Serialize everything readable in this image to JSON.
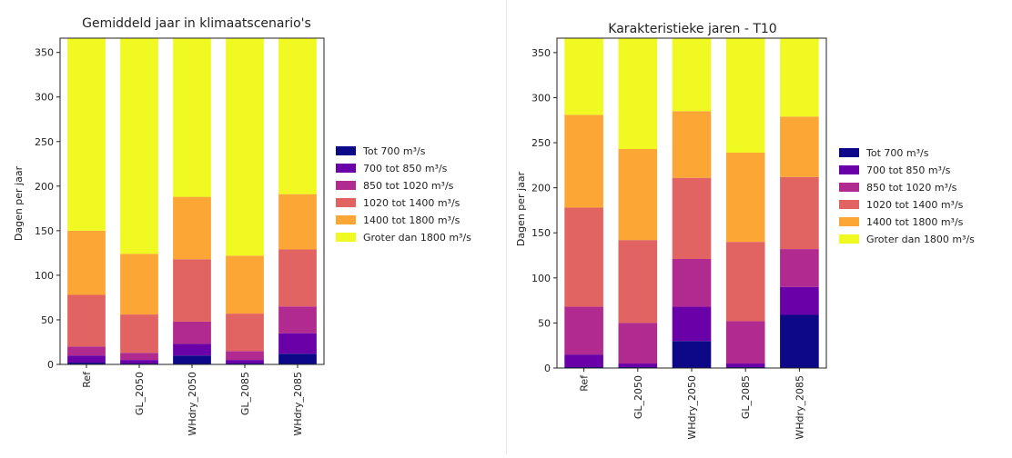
{
  "chart_data": [
    {
      "type": "bar",
      "stacked": true,
      "title": "Gemiddeld jaar in klimaatscenario's",
      "xlabel": "",
      "ylabel": "Dagen per jaar",
      "ylim": [
        0,
        366
      ],
      "yticks": [
        0,
        50,
        100,
        150,
        200,
        250,
        300,
        350
      ],
      "grid": false,
      "legend": "right",
      "categories": [
        "Ref",
        "GL_2050",
        "WHdry_2050",
        "GL_2085",
        "WHdry_2085"
      ],
      "series": [
        {
          "name": "Tot 700 m³/s",
          "color": "#0d0887",
          "values": [
            2,
            1,
            10,
            1,
            12
          ]
        },
        {
          "name": "700 tot 850 m³/s",
          "color": "#6a00a8",
          "values": [
            8,
            4,
            13,
            4,
            23
          ]
        },
        {
          "name": "850 tot 1020 m³/s",
          "color": "#b12a90",
          "values": [
            10,
            8,
            25,
            10,
            30
          ]
        },
        {
          "name": "1020 tot 1400 m³/s",
          "color": "#e16462",
          "values": [
            58,
            43,
            70,
            42,
            64
          ]
        },
        {
          "name": "1400 tot 1800 m³/s",
          "color": "#fca636",
          "values": [
            72,
            68,
            70,
            65,
            62
          ]
        },
        {
          "name": "Groter dan 1800 m³/s",
          "color": "#f0f921",
          "values": [
            216,
            242,
            178,
            244,
            175
          ]
        }
      ]
    },
    {
      "type": "bar",
      "stacked": true,
      "title": "Karakteristieke jaren - T10",
      "xlabel": "",
      "ylabel": "Dagen per jaar",
      "ylim": [
        0,
        366
      ],
      "yticks": [
        0,
        50,
        100,
        150,
        200,
        250,
        300,
        350
      ],
      "grid": false,
      "legend": "right",
      "categories": [
        "Ref",
        "GL_2050",
        "WHdry_2050",
        "GL_2085",
        "WHdry_2085"
      ],
      "series": [
        {
          "name": "Tot 700 m³/s",
          "color": "#0d0887",
          "values": [
            1,
            1,
            30,
            1,
            59
          ]
        },
        {
          "name": "700 tot 850 m³/s",
          "color": "#6a00a8",
          "values": [
            14,
            4,
            38,
            4,
            31
          ]
        },
        {
          "name": "850 tot 1020 m³/s",
          "color": "#b12a90",
          "values": [
            53,
            45,
            53,
            47,
            42
          ]
        },
        {
          "name": "1020 tot 1400 m³/s",
          "color": "#e16462",
          "values": [
            110,
            92,
            90,
            88,
            80
          ]
        },
        {
          "name": "1400 tot 1800 m³/s",
          "color": "#fca636",
          "values": [
            103,
            101,
            74,
            99,
            67
          ]
        },
        {
          "name": "Groter dan 1800 m³/s",
          "color": "#f0f921",
          "values": [
            85,
            123,
            81,
            127,
            87
          ]
        }
      ]
    }
  ]
}
